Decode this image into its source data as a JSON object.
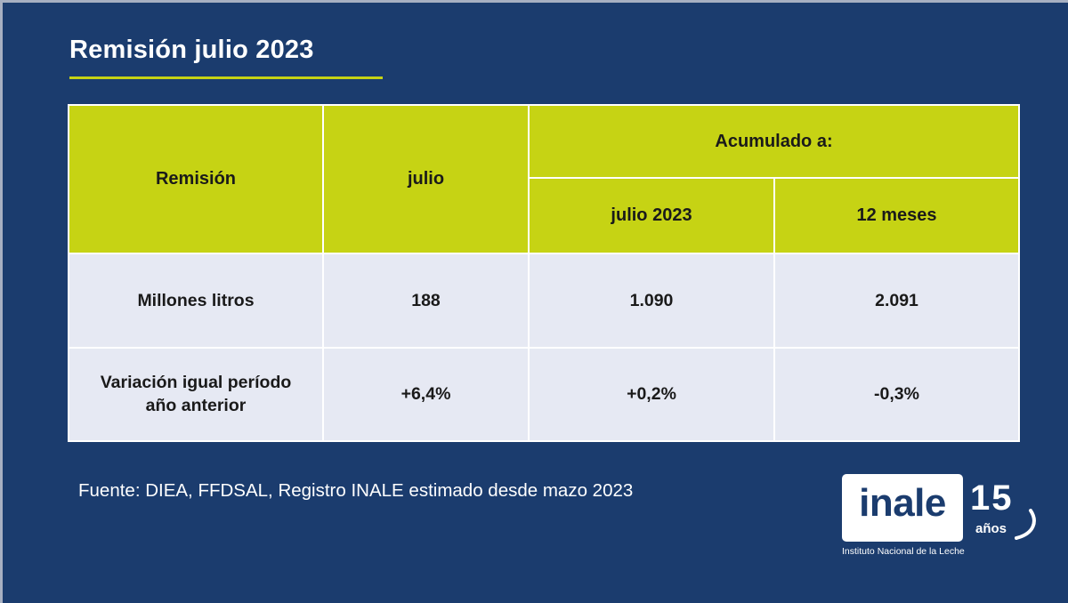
{
  "title": "Remisión julio 2023",
  "table": {
    "header": {
      "col1": "Remisión",
      "col2": "julio",
      "group": "Acumulado a:",
      "sub1": "julio 2023",
      "sub2": "12 meses"
    },
    "rows": [
      {
        "label": "Millones litros",
        "julio": "188",
        "acum_julio_2023": "1.090",
        "acum_12_meses": "2.091"
      },
      {
        "label_line1": "Variación igual período",
        "label_line2": "año anterior",
        "julio": "+6,4%",
        "acum_julio_2023": "+0,2%",
        "acum_12_meses": "-0,3%"
      }
    ]
  },
  "source": "Fuente: DIEA, FFDSAL, Registro INALE estimado desde mazo 2023",
  "logo": {
    "word": "inale",
    "number": "15",
    "years": "años",
    "subtitle": "Instituto Nacional de la Leche"
  },
  "colors": {
    "background": "#1b3c6e",
    "accent": "#c6d314",
    "cell": "#e6e9f3"
  }
}
